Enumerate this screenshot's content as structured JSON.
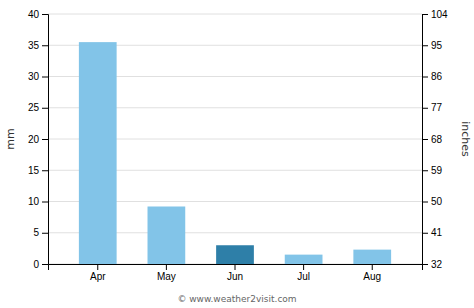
{
  "chart_data": {
    "type": "bar",
    "categories": [
      "Apr",
      "May",
      "Jun",
      "Jul",
      "Aug"
    ],
    "values": [
      35.5,
      9.2,
      3.0,
      1.5,
      2.3
    ],
    "colors": [
      "#82c4e8",
      "#82c4e8",
      "#2e7fa8",
      "#82c4e8",
      "#82c4e8"
    ],
    "ylabel": "mm",
    "ylim": [
      0,
      40
    ],
    "yticks": [
      0,
      5,
      10,
      15,
      20,
      25,
      30,
      35,
      40
    ],
    "y2label": "inches",
    "y2lim": [
      32,
      104
    ],
    "y2ticks": [
      32,
      41,
      50,
      59,
      68,
      77,
      86,
      95,
      104
    ],
    "grid": true,
    "annotations": [
      "© www.weather2visit.com"
    ]
  }
}
